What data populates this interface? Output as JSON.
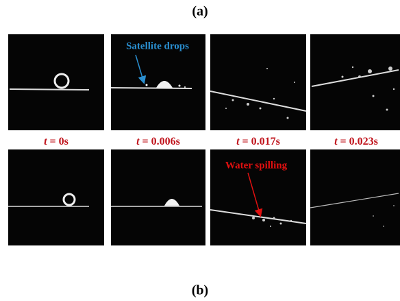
{
  "figure": {
    "label_a": "(a)",
    "label_b": "(b)",
    "annotations": {
      "satellite": "Satellite drops",
      "spilling": "Water spilling"
    },
    "time_labels": [
      {
        "symbol": "t",
        "text": "= 0s"
      },
      {
        "symbol": "t",
        "text": "= 0.006s"
      },
      {
        "symbol": "t",
        "text": "= 0.017s"
      },
      {
        "symbol": "t",
        "text": "= 0.023s"
      }
    ]
  }
}
